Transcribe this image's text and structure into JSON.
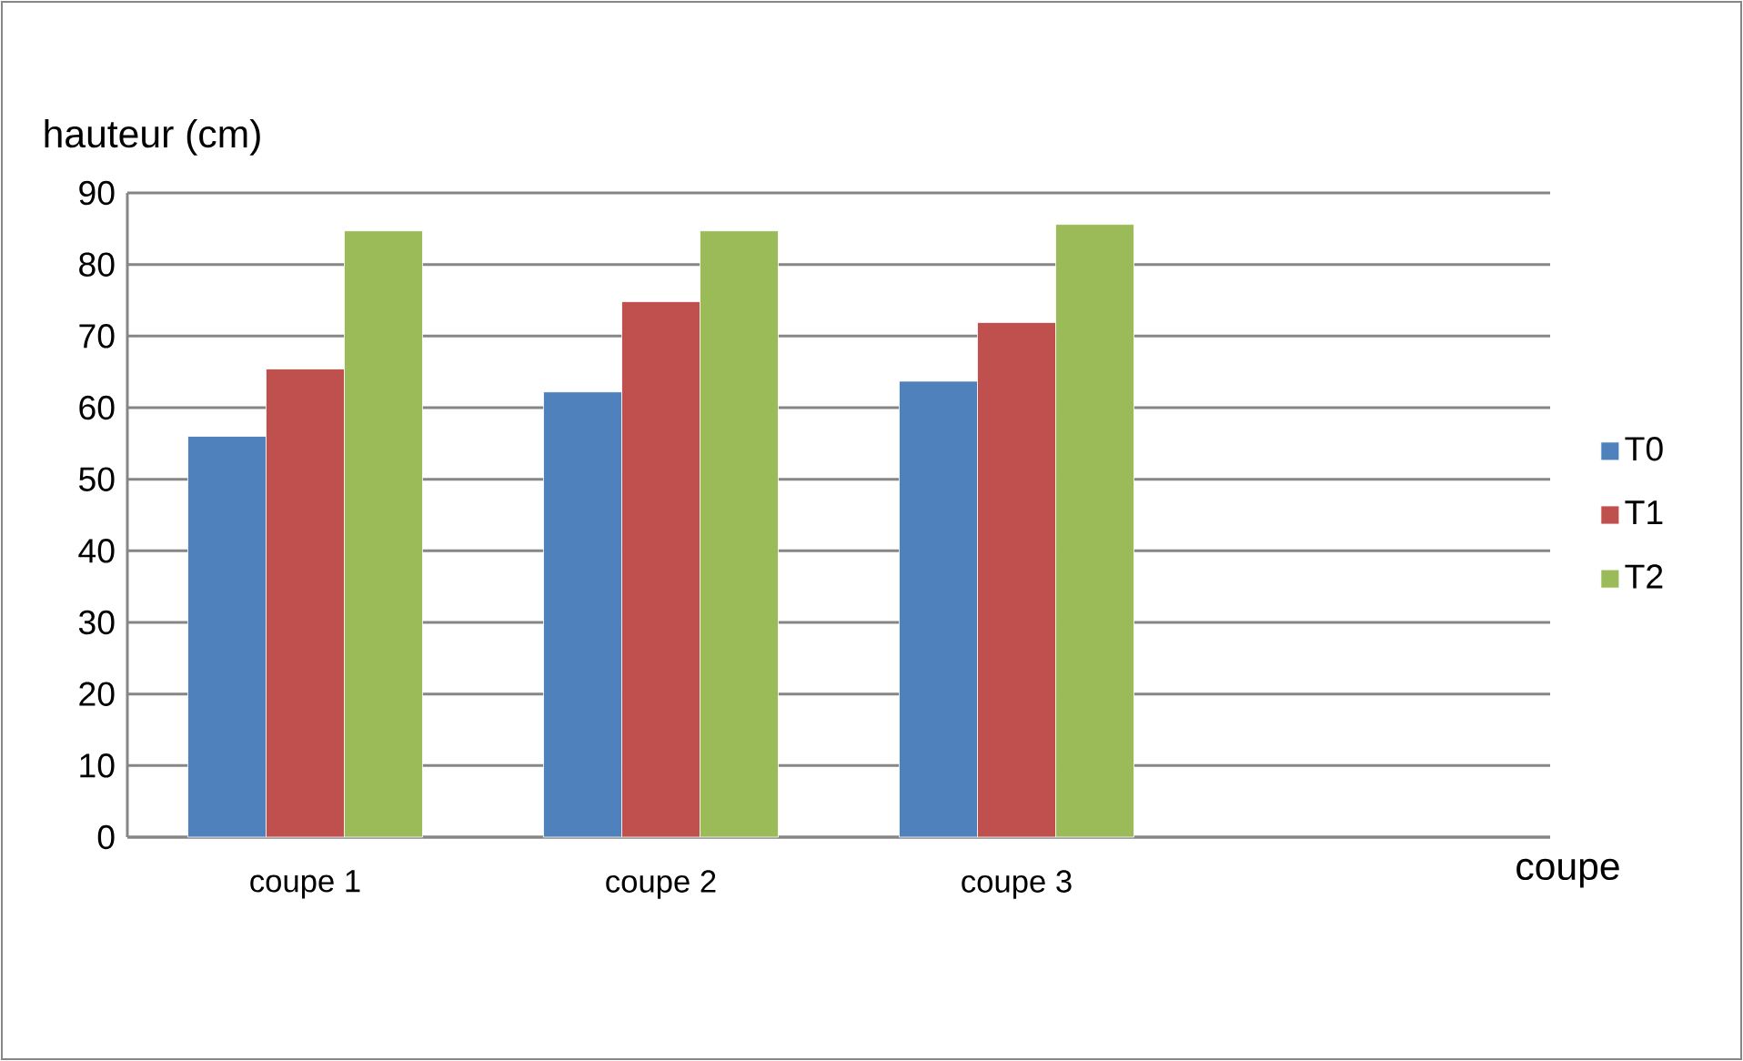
{
  "chart_data": {
    "type": "bar",
    "ylabel": "hauteur (cm)",
    "xlabel": "coupe",
    "categories": [
      "coupe 1",
      "coupe 2",
      "coupe 3",
      null
    ],
    "series": [
      {
        "name": "T0",
        "color": "#4f81bd",
        "values": [
          56,
          62.2,
          63.7,
          null
        ]
      },
      {
        "name": "T1",
        "color": "#c0504d",
        "values": [
          65.4,
          74.8,
          71.9,
          null
        ]
      },
      {
        "name": "T2",
        "color": "#9bbb59",
        "values": [
          84.7,
          84.7,
          85.6,
          null
        ]
      }
    ],
    "ylim": [
      0,
      90
    ],
    "yticks": [
      0,
      10,
      20,
      30,
      40,
      50,
      60,
      70,
      80,
      90
    ],
    "grid": "y",
    "legend": "right"
  }
}
